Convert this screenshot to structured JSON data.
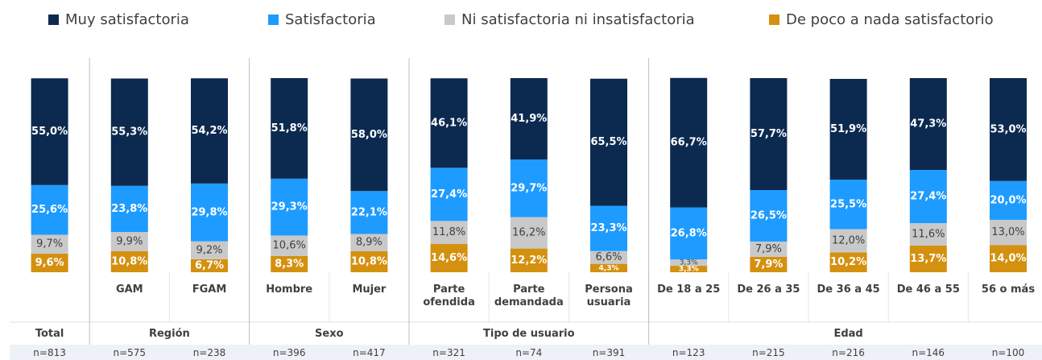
{
  "chart_data": {
    "type": "stacked_bar",
    "categories": [
      null,
      "GAM",
      "FGAM",
      "Hombre",
      "Mujer",
      "Parte ofendida",
      "Parte demandada",
      "Persona usuaria",
      "De 18 a 25",
      "De 26 a 35",
      "De 36 a 45",
      "De 46 a 55",
      "56  o más"
    ],
    "groups": [
      {
        "name": "Total",
        "count": 1
      },
      {
        "name": "Región",
        "count": 2
      },
      {
        "name": "Sexo",
        "count": 2
      },
      {
        "name": "Tipo de usuario",
        "count": 3
      },
      {
        "name": "Edad",
        "count": 5
      }
    ],
    "n_labels": [
      "n=813",
      "n=575",
      "n=238",
      "n=396",
      "n=417",
      "n=321",
      "n=74",
      "n=391",
      "n=123",
      "n=215",
      "n=216",
      "n=146",
      "n=100"
    ],
    "ylim": [
      0,
      100
    ],
    "series": [
      {
        "name": "De poco a nada satisfactorio",
        "color": "#d4900f",
        "label_color": "#ffffff",
        "values": [
          9.6,
          10.8,
          6.7,
          8.3,
          10.8,
          14.6,
          12.2,
          4.3,
          3.3,
          7.9,
          10.2,
          13.7,
          14.0
        ],
        "value_labels": [
          "9,6%",
          "10,8%",
          "6,7%",
          "8,3%",
          "10,8%",
          "14,6%",
          "12,2%",
          "4,3%",
          "3,3%",
          "7,9%",
          "10,2%",
          "13,7%",
          "14,0%"
        ]
      },
      {
        "name": "Ni satisfactoria ni insatisfactoria",
        "color": "#c9c9c9",
        "label_color": "#404040",
        "values": [
          9.7,
          9.9,
          9.2,
          10.6,
          8.9,
          11.8,
          16.2,
          6.6,
          3.3,
          7.9,
          12.0,
          11.6,
          13.0
        ],
        "value_labels": [
          "9,7%",
          "9,9%",
          "9,2%",
          "10,6%",
          "8,9%",
          "11,8%",
          "16,2%",
          "6,6%",
          "3,3%",
          "7,9%",
          "12,0%",
          "11,6%",
          "13,0%"
        ]
      },
      {
        "name": "Satisfactoria",
        "color": "#1e9bff",
        "label_color": "#ffffff",
        "values": [
          25.6,
          23.8,
          29.8,
          29.3,
          22.1,
          27.4,
          29.7,
          23.3,
          26.8,
          26.5,
          25.5,
          27.4,
          20.0
        ],
        "value_labels": [
          "25,6%",
          "23,8%",
          "29,8%",
          "29,3%",
          "22,1%",
          "27,4%",
          "29,7%",
          "23,3%",
          "26,8%",
          "26,5%",
          "25,5%",
          "27,4%",
          "20,0%"
        ]
      },
      {
        "name": "Muy satisfactoria",
        "color": "#0c2a50",
        "label_color": "#ffffff",
        "values": [
          55.0,
          55.3,
          54.2,
          51.8,
          58.0,
          46.1,
          41.9,
          65.5,
          66.7,
          57.7,
          51.9,
          47.3,
          53.0
        ],
        "value_labels": [
          "55,0%",
          "55,3%",
          "54,2%",
          "51,8%",
          "58,0%",
          "46,1%",
          "41,9%",
          "65,5%",
          "66,7%",
          "57,7%",
          "51,9%",
          "47,3%",
          "53,0%"
        ]
      }
    ]
  }
}
